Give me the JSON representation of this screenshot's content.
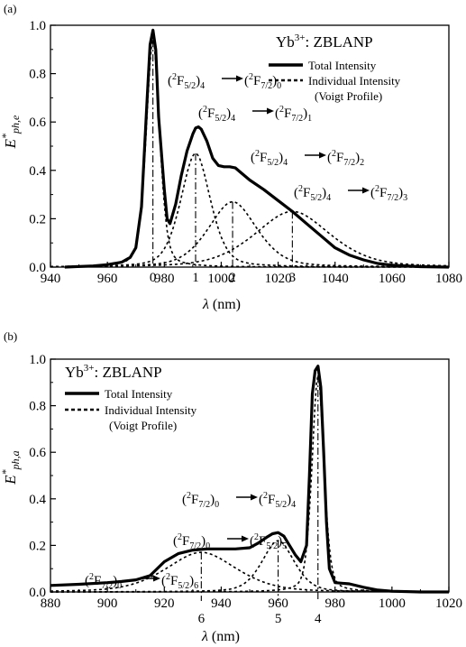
{
  "chart_data": [
    {
      "panel": "(a)",
      "type": "line",
      "xlabel": "λ (nm)",
      "ylabel": "E*ph,e",
      "xlim": [
        940,
        1080
      ],
      "ylim": [
        0,
        1.0
      ],
      "xticks": [
        940,
        960,
        980,
        1000,
        1020,
        1040,
        1060,
        1080
      ],
      "yticks": [
        0.0,
        0.2,
        0.4,
        0.6,
        0.8,
        1.0
      ],
      "grid": false,
      "legend": {
        "title": "Yb3+: ZBLANP",
        "position": "top-right",
        "entries": [
          "Total Intensity",
          "Individual Intensity",
          "(Voigt Profile)"
        ]
      },
      "series": [
        {
          "name": "Total Intensity",
          "style": "solid",
          "x": [
            945,
            955,
            960,
            965,
            968,
            970,
            972,
            974,
            975,
            976,
            977,
            978,
            980,
            981,
            982,
            984,
            986,
            988,
            990,
            991,
            992,
            993,
            995,
            997,
            999,
            1001,
            1003,
            1005,
            1007,
            1010,
            1015,
            1020,
            1025,
            1030,
            1035,
            1040,
            1045,
            1050,
            1055,
            1060,
            1070,
            1080
          ],
          "values": [
            0.0,
            0.005,
            0.01,
            0.02,
            0.04,
            0.08,
            0.25,
            0.7,
            0.92,
            0.98,
            0.9,
            0.62,
            0.32,
            0.2,
            0.18,
            0.26,
            0.38,
            0.48,
            0.55,
            0.575,
            0.58,
            0.57,
            0.52,
            0.45,
            0.42,
            0.415,
            0.415,
            0.41,
            0.39,
            0.36,
            0.32,
            0.275,
            0.23,
            0.18,
            0.13,
            0.08,
            0.05,
            0.03,
            0.015,
            0.008,
            0.002,
            0.0
          ]
        }
      ],
      "components": [
        {
          "label": "0",
          "center": 976,
          "amplitude": 0.94,
          "width": 2.5
        },
        {
          "label": "1",
          "center": 991,
          "amplitude": 0.47,
          "width": 5.5
        },
        {
          "label": "2",
          "center": 1004,
          "amplitude": 0.27,
          "width": 9
        },
        {
          "label": "3",
          "center": 1025,
          "amplitude": 0.23,
          "width": 14
        }
      ],
      "annotations": [
        {
          "lower": "(²F5/2)4",
          "upper": "(²F7/2)0"
        },
        {
          "lower": "(²F5/2)4",
          "upper": "(²F7/2)1"
        },
        {
          "lower": "(²F5/2)4",
          "upper": "(²F7/2)2"
        },
        {
          "lower": "(²F5/2)4",
          "upper": "(²F7/2)3"
        }
      ],
      "line_labels": [
        "0",
        "1",
        "2",
        "3"
      ]
    },
    {
      "panel": "(b)",
      "type": "line",
      "xlabel": "λ (nm)",
      "ylabel": "E*ph,a",
      "xlim": [
        880,
        1020
      ],
      "ylim": [
        0,
        1.0
      ],
      "xticks": [
        880,
        900,
        920,
        940,
        960,
        980,
        1000,
        1020
      ],
      "yticks": [
        0.0,
        0.2,
        0.4,
        0.6,
        0.8,
        1.0
      ],
      "grid": false,
      "legend": {
        "title": "Yb3+: ZBLANP",
        "position": "top-left",
        "entries": [
          "Total Intensity",
          "Individual Intensity",
          "(Voigt Profile)"
        ]
      },
      "series": [
        {
          "name": "Total Intensity",
          "style": "solid",
          "x": [
            880,
            890,
            900,
            905,
            910,
            915,
            920,
            925,
            930,
            935,
            940,
            945,
            950,
            953,
            956,
            958,
            960,
            962,
            964,
            966,
            968,
            970,
            971,
            972,
            973,
            974,
            975,
            976,
            977,
            978,
            980,
            985,
            990,
            995,
            1000,
            1010,
            1020
          ],
          "values": [
            0.028,
            0.033,
            0.04,
            0.045,
            0.052,
            0.07,
            0.13,
            0.165,
            0.18,
            0.185,
            0.185,
            0.185,
            0.19,
            0.21,
            0.235,
            0.25,
            0.255,
            0.24,
            0.2,
            0.16,
            0.13,
            0.2,
            0.5,
            0.85,
            0.95,
            0.97,
            0.88,
            0.6,
            0.3,
            0.1,
            0.04,
            0.035,
            0.02,
            0.008,
            0.003,
            0.0,
            0.0
          ]
        }
      ],
      "components": [
        {
          "label": "6",
          "center": 933,
          "amplitude": 0.17,
          "width": 13
        },
        {
          "label": "5",
          "center": 960,
          "amplitude": 0.22,
          "width": 6
        },
        {
          "label": "4",
          "center": 974,
          "amplitude": 0.93,
          "width": 2.2
        }
      ],
      "annotations": [
        {
          "lower": "(²F7/2)0",
          "upper": "(²F5/2)4"
        },
        {
          "lower": "(²F7/2)0",
          "upper": "(²F5/2)5"
        },
        {
          "lower": "(²F7/2)0",
          "upper": "(²F5/2)6"
        }
      ],
      "line_labels": [
        "6",
        "5",
        "4"
      ]
    }
  ]
}
